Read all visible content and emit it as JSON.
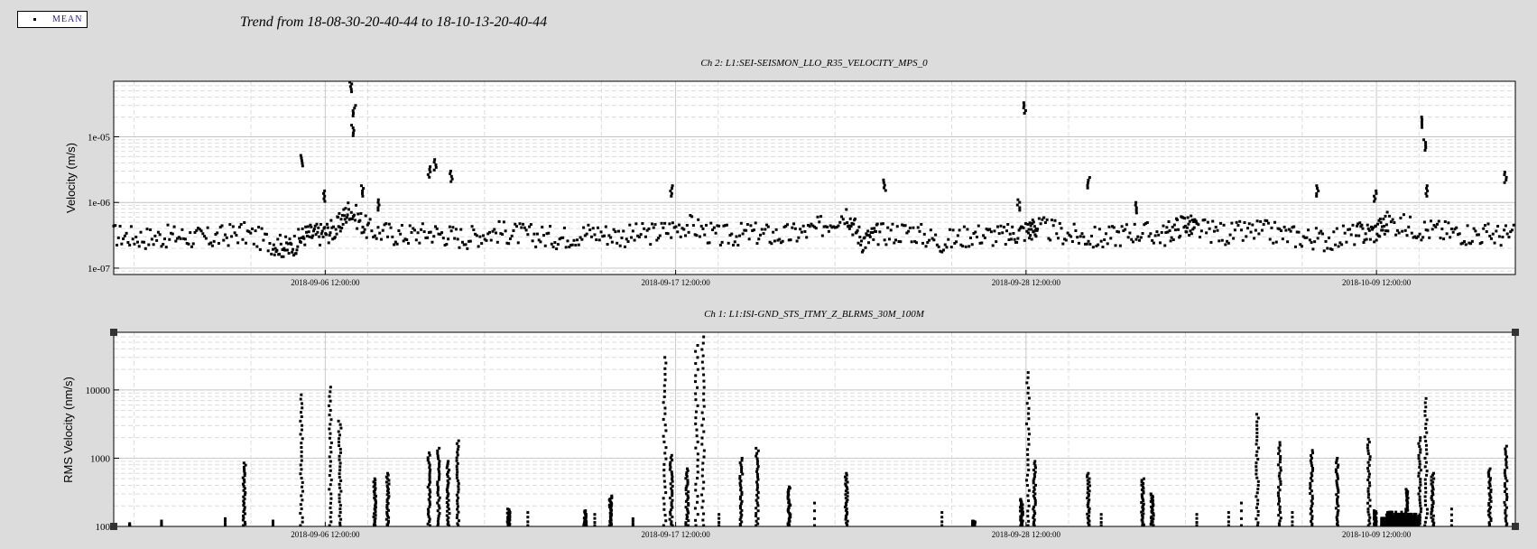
{
  "legend": {
    "label": "MEAN"
  },
  "title": "Trend from 18-08-30-20-40-44 to 18-10-13-20-40-44",
  "chart_data": [
    {
      "type": "scatter",
      "title": "Ch 2: L1:SEI-SEISMON_LLO_R35_VELOCITY_MPS_0",
      "ylabel": "Velocity (m/s)",
      "yscale": "log",
      "ylim": [
        8e-08,
        7e-05
      ],
      "yticks": [
        {
          "value": 1e-05,
          "label": "1e-05"
        },
        {
          "value": 1e-06,
          "label": "1e-06"
        },
        {
          "value": 1e-07,
          "label": "1e-07"
        }
      ],
      "xlim_days": [
        0,
        44
      ],
      "xticks": [
        {
          "day": 6.64,
          "label": "2018-09-06 12:00:00"
        },
        {
          "day": 17.64,
          "label": "2018-09-17 12:00:00"
        },
        {
          "day": 28.64,
          "label": "2018-09-28 12:00:00"
        },
        {
          "day": 39.64,
          "label": "2018-10-09 12:00:00"
        }
      ],
      "grid": true,
      "baseline": [
        [
          0,
          3.2e-07
        ],
        [
          1,
          2.9e-07
        ],
        [
          2,
          3.1e-07
        ],
        [
          3,
          2.8e-07
        ],
        [
          4,
          3.5e-07
        ],
        [
          5,
          2.4e-07
        ],
        [
          5.5,
          2e-07
        ],
        [
          6,
          3.2e-07
        ],
        [
          6.5,
          3.3e-07
        ],
        [
          7,
          4e-07
        ],
        [
          7.4,
          8e-07
        ],
        [
          8,
          3.8e-07
        ],
        [
          9,
          3.2e-07
        ],
        [
          10,
          3.5e-07
        ],
        [
          11,
          2.9e-07
        ],
        [
          12,
          3.6e-07
        ],
        [
          13,
          3.2e-07
        ],
        [
          14,
          2.9e-07
        ],
        [
          15,
          3.5e-07
        ],
        [
          16,
          3.1e-07
        ],
        [
          17,
          3.4e-07
        ],
        [
          18,
          4.6e-07
        ],
        [
          19,
          3e-07
        ],
        [
          20,
          3.4e-07
        ],
        [
          21,
          3.1e-07
        ],
        [
          22,
          3.8e-07
        ],
        [
          23,
          7e-07
        ],
        [
          23.5,
          2.6e-07
        ],
        [
          24,
          3.3e-07
        ],
        [
          25,
          3.7e-07
        ],
        [
          26,
          2.5e-07
        ],
        [
          27,
          3.3e-07
        ],
        [
          28,
          3.1e-07
        ],
        [
          28.7,
          3.8e-07
        ],
        [
          29,
          4.2e-07
        ],
        [
          30,
          3.2e-07
        ],
        [
          31,
          2.8e-07
        ],
        [
          32,
          3.6e-07
        ],
        [
          33,
          3.2e-07
        ],
        [
          33.6,
          4.8e-07
        ],
        [
          34,
          3.9e-07
        ],
        [
          35,
          3.3e-07
        ],
        [
          36,
          3.7e-07
        ],
        [
          37,
          3.1e-07
        ],
        [
          38,
          2.7e-07
        ],
        [
          39,
          3.3e-07
        ],
        [
          39.6,
          3.6e-07
        ],
        [
          40,
          5e-07
        ],
        [
          41,
          4e-07
        ],
        [
          42,
          3.5e-07
        ],
        [
          43,
          3.3e-07
        ],
        [
          44,
          3.1e-07
        ]
      ],
      "spikes": [
        [
          6.6,
          1.5e-06
        ],
        [
          5.9,
          5.2e-06
        ],
        [
          7.45,
          7e-05
        ],
        [
          7.5,
          1.5e-05
        ],
        [
          7.55,
          3e-05
        ],
        [
          7.8,
          1.8e-06
        ],
        [
          8.3,
          1.1e-06
        ],
        [
          9.9,
          3.5e-06
        ],
        [
          10.1,
          4.5e-06
        ],
        [
          10.6,
          3e-06
        ],
        [
          17.5,
          1.8e-06
        ],
        [
          24.2,
          2.2e-06
        ],
        [
          28.6,
          3.3e-05
        ],
        [
          28.4,
          1.1e-06
        ],
        [
          30.6,
          2.4e-06
        ],
        [
          32.1,
          1e-06
        ],
        [
          37.8,
          1.8e-06
        ],
        [
          39.6,
          1.5e-06
        ],
        [
          41.1,
          2e-05
        ],
        [
          41.15,
          9e-06
        ],
        [
          41.2,
          1.8e-06
        ],
        [
          43.7,
          2.9e-06
        ]
      ]
    },
    {
      "type": "scatter",
      "title": "Ch 1: L1:ISI-GND_STS_ITMY_Z_BLRMS_30M_100M",
      "ylabel": "RMS Velocity (nm/s)",
      "yscale": "log",
      "ylim": [
        100,
        70000
      ],
      "yticks": [
        {
          "value": 10000,
          "label": "10000"
        },
        {
          "value": 1000,
          "label": "1000"
        },
        {
          "value": 100,
          "label": "100"
        }
      ],
      "xlim_days": [
        0,
        44
      ],
      "xticks": [
        {
          "day": 6.64,
          "label": "2018-09-06 12:00:00"
        },
        {
          "day": 17.64,
          "label": "2018-09-17 12:00:00"
        },
        {
          "day": 28.64,
          "label": "2018-09-28 12:00:00"
        },
        {
          "day": 39.64,
          "label": "2018-10-09 12:00:00"
        }
      ],
      "grid": true,
      "spikes": [
        [
          4.1,
          850
        ],
        [
          5.9,
          8500
        ],
        [
          6.8,
          11000
        ],
        [
          7.1,
          3500
        ],
        [
          8.2,
          500
        ],
        [
          8.6,
          600
        ],
        [
          9.9,
          1200
        ],
        [
          10.2,
          1400
        ],
        [
          10.5,
          900
        ],
        [
          10.8,
          1800
        ],
        [
          12.4,
          180
        ],
        [
          14.8,
          170
        ],
        [
          15.6,
          280
        ],
        [
          17.3,
          30000
        ],
        [
          17.5,
          1100
        ],
        [
          18.0,
          700
        ],
        [
          18.3,
          45000
        ],
        [
          18.5,
          60000
        ],
        [
          19.7,
          1000
        ],
        [
          20.2,
          1400
        ],
        [
          21.2,
          380
        ],
        [
          23.0,
          600
        ],
        [
          27.0,
          120
        ],
        [
          28.5,
          250
        ],
        [
          28.7,
          18000
        ],
        [
          28.9,
          900
        ],
        [
          30.6,
          600
        ],
        [
          32.3,
          500
        ],
        [
          32.6,
          300
        ],
        [
          35.9,
          4400
        ],
        [
          36.6,
          1700
        ],
        [
          37.6,
          1300
        ],
        [
          38.4,
          1000
        ],
        [
          39.4,
          1900
        ],
        [
          39.6,
          170
        ],
        [
          40.0,
          160
        ],
        [
          40.6,
          350
        ],
        [
          41.0,
          2000
        ],
        [
          41.2,
          7500
        ],
        [
          41.4,
          600
        ],
        [
          43.2,
          700
        ],
        [
          43.7,
          1500
        ]
      ],
      "sparse": [
        [
          0.5,
          110
        ],
        [
          1.5,
          120
        ],
        [
          3.5,
          130
        ],
        [
          5.0,
          120
        ],
        [
          13.0,
          160
        ],
        [
          15.1,
          150
        ],
        [
          16.3,
          130
        ],
        [
          19.0,
          150
        ],
        [
          22.0,
          220
        ],
        [
          26.0,
          160
        ],
        [
          31.0,
          150
        ],
        [
          34.0,
          150
        ],
        [
          35.0,
          160
        ],
        [
          35.4,
          220
        ],
        [
          37.0,
          160
        ],
        [
          42.0,
          180
        ]
      ],
      "cluster": {
        "from": 39.8,
        "to": 41.0,
        "top": 170,
        "bottom": 100
      }
    }
  ]
}
